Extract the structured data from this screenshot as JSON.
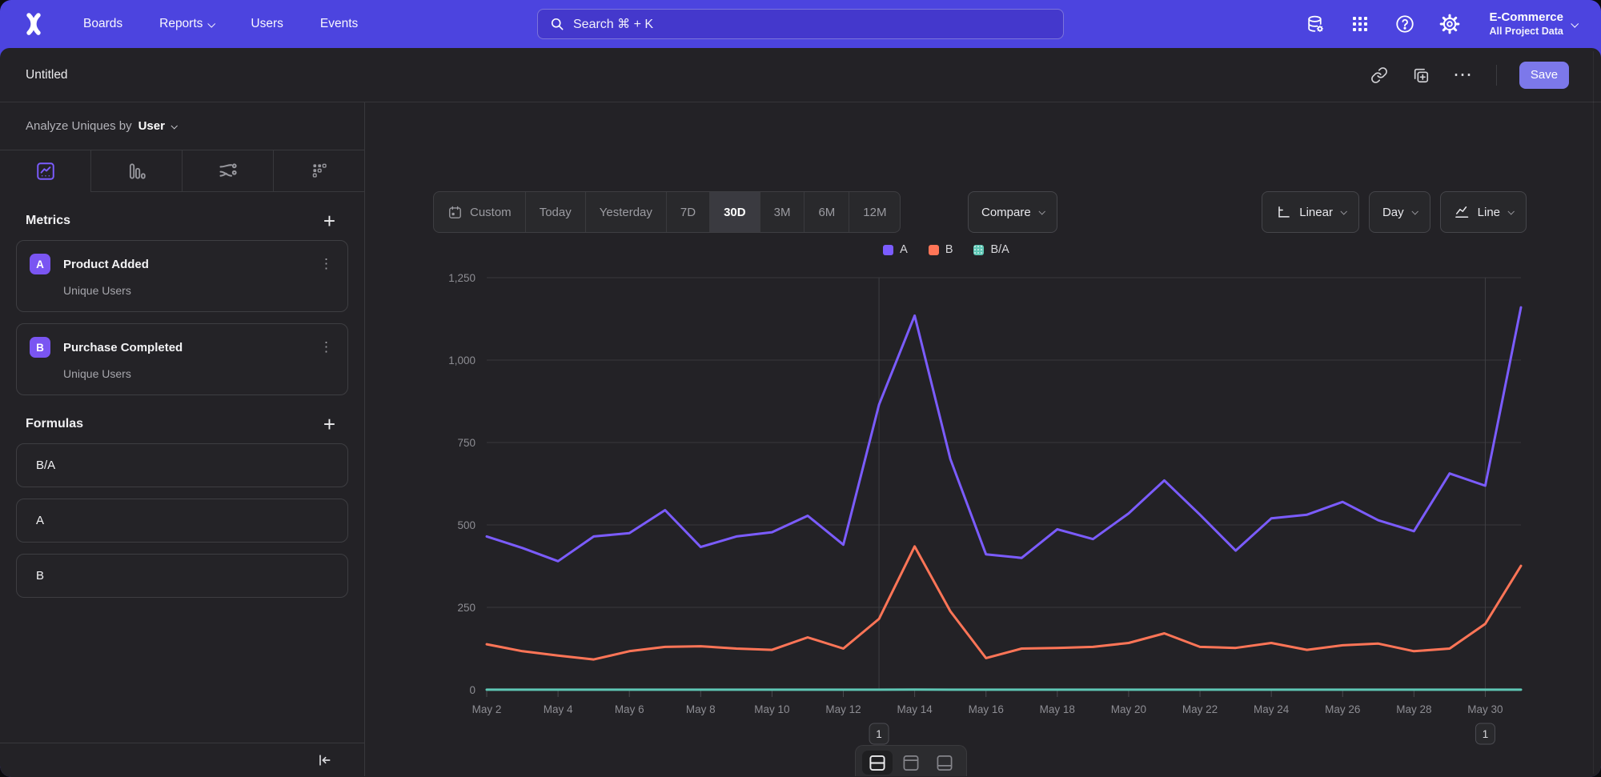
{
  "nav": {
    "links": [
      {
        "label": "Boards",
        "dropdown": false
      },
      {
        "label": "Reports",
        "dropdown": true
      },
      {
        "label": "Users",
        "dropdown": false
      },
      {
        "label": "Events",
        "dropdown": false
      }
    ],
    "search_text": "Search  ⌘ + K",
    "project": {
      "name": "E-Commerce",
      "scope": "All Project Data"
    }
  },
  "header": {
    "title": "Untitled",
    "save_label": "Save"
  },
  "icons": {
    "kebab": "⋮",
    "ellipsis": "•••",
    "plus": "+"
  },
  "sidebar": {
    "analyze_prefix": "Analyze Uniques by",
    "analyze_value": "User",
    "metrics_title": "Metrics",
    "metrics": [
      {
        "letter": "A",
        "name": "Product Added",
        "subtitle": "Unique Users"
      },
      {
        "letter": "B",
        "name": "Purchase Completed",
        "subtitle": "Unique Users"
      }
    ],
    "formulas_title": "Formulas",
    "formulas": [
      {
        "name": "B/A"
      },
      {
        "name": "A"
      },
      {
        "name": "B"
      }
    ]
  },
  "controls": {
    "ranges": [
      "Custom",
      "Today",
      "Yesterday",
      "7D",
      "30D",
      "3M",
      "6M",
      "12M"
    ],
    "active_range": "30D",
    "compare_label": "Compare",
    "scale_label": "Linear",
    "interval_label": "Day",
    "chart_type_label": "Line"
  },
  "chart_data": {
    "type": "line",
    "title": "",
    "xlabel": "",
    "ylabel": "",
    "ylim": [
      0,
      1250
    ],
    "ytick_step": 250,
    "grid": true,
    "legend_position": "top-center",
    "x": [
      "May 2",
      "May 3",
      "May 4",
      "May 5",
      "May 6",
      "May 7",
      "May 8",
      "May 9",
      "May 10",
      "May 11",
      "May 12",
      "May 13",
      "May 14",
      "May 15",
      "May 16",
      "May 17",
      "May 18",
      "May 19",
      "May 20",
      "May 21",
      "May 22",
      "May 23",
      "May 24",
      "May 25",
      "May 26",
      "May 27",
      "May 28",
      "May 29",
      "May 30",
      "May 31"
    ],
    "x_tick_labels": [
      "May 2",
      "May 4",
      "May 6",
      "May 8",
      "May 10",
      "May 12",
      "May 14",
      "May 16",
      "May 18",
      "May 20",
      "May 22",
      "May 24",
      "May 26",
      "May 28",
      "May 30"
    ],
    "legend": [
      {
        "name": "A",
        "color": "#7B5CFF",
        "dotted": false
      },
      {
        "name": "B",
        "color": "#FF7557",
        "dotted": false
      },
      {
        "name": "B/A",
        "color": "#5FC7B5",
        "dotted": true
      }
    ],
    "series": [
      {
        "name": "A",
        "color": "#7B5CFF",
        "values": [
          465,
          430,
          390,
          465,
          475,
          545,
          433,
          465,
          478,
          528,
          440,
          865,
          1135,
          700,
          411,
          400,
          487,
          457,
          535,
          635,
          531,
          422,
          520,
          531,
          570,
          514,
          481,
          656,
          619,
          1160
        ]
      },
      {
        "name": "B",
        "color": "#FF7557",
        "values": [
          138,
          117,
          104,
          92,
          117,
          130,
          132,
          125,
          121,
          159,
          125,
          215,
          435,
          238,
          96,
          125,
          127,
          130,
          142,
          171,
          130,
          127,
          142,
          121,
          135,
          140,
          117,
          125,
          200,
          376
        ]
      },
      {
        "name": "B/A",
        "color": "#5FC7B5",
        "values": [
          0.3,
          0.27,
          0.27,
          0.2,
          0.25,
          0.24,
          0.3,
          0.27,
          0.25,
          0.3,
          0.28,
          0.25,
          0.38,
          0.34,
          0.23,
          0.31,
          0.26,
          0.28,
          0.27,
          0.27,
          0.24,
          0.3,
          0.27,
          0.23,
          0.24,
          0.27,
          0.24,
          0.19,
          0.32,
          0.32
        ]
      }
    ],
    "annotations": [
      {
        "label": "1",
        "x_index": 11
      },
      {
        "label": "1",
        "x_index": 28
      }
    ]
  }
}
